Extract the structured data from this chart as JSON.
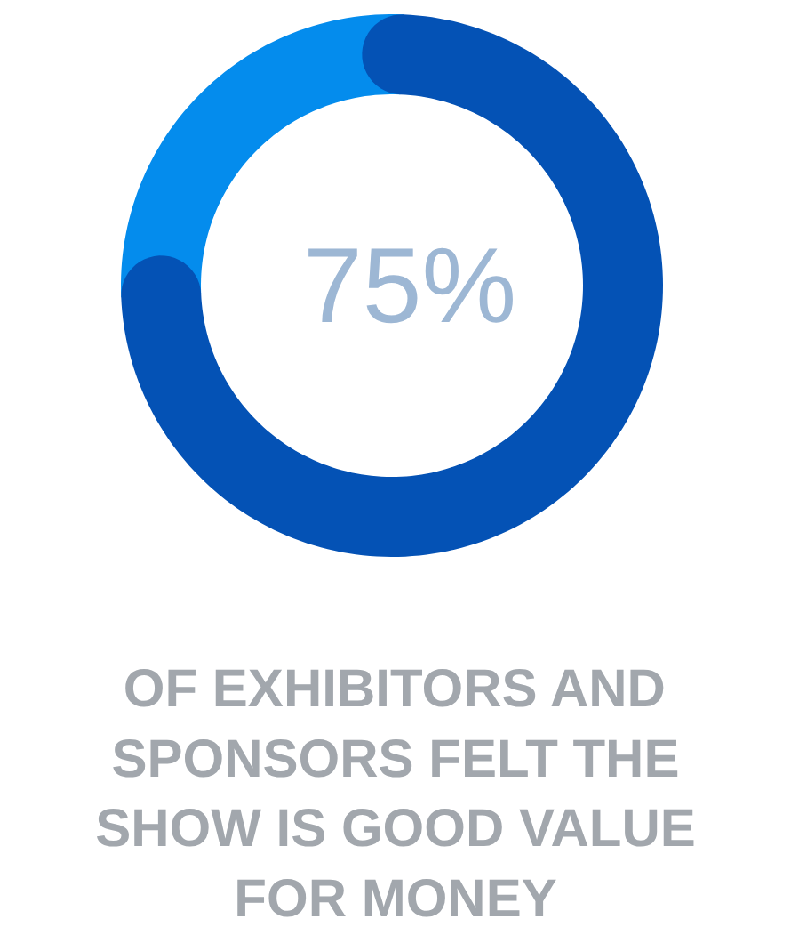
{
  "chart_data": {
    "type": "donut",
    "categories": [
      null,
      null
    ],
    "values": [
      75,
      25
    ],
    "colors": [
      "#0452b5",
      "#048ced"
    ],
    "value_labels": [
      "75%",
      null
    ],
    "annotations": [
      "OF EXHIBITORS AND SPONSORS FELT THE SHOW IS GOOD VALUE FOR MONEY"
    ]
  }
}
